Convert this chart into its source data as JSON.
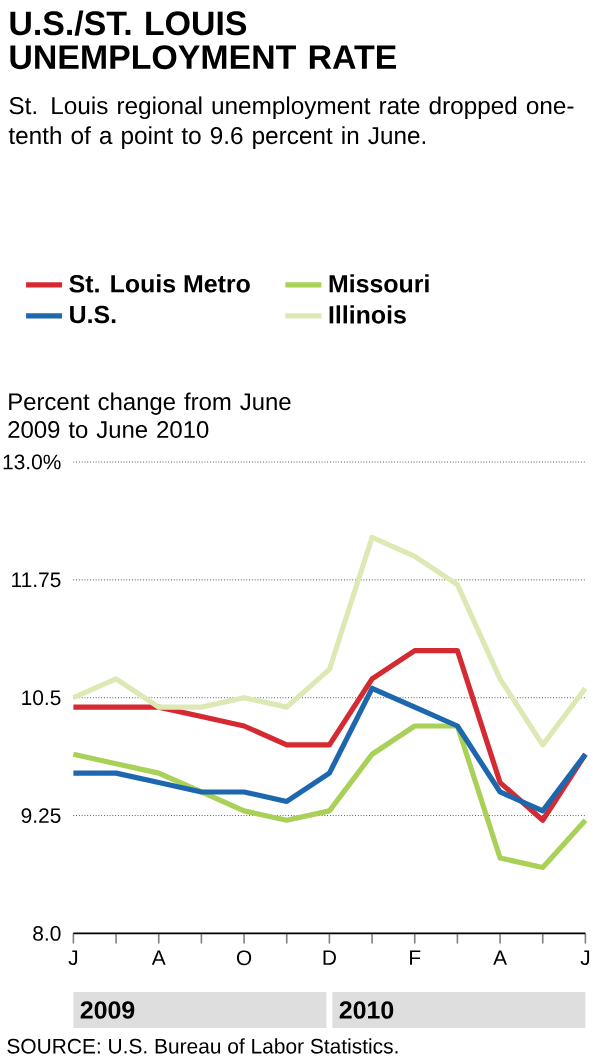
{
  "chart_data": {
    "type": "line",
    "title": "U.S./ST. LOUIS UNEMPLOYMENT RATE",
    "subtitle": "St. Louis regional unemployment rate dropped one-tenth of a point to 9.6 percent in June.",
    "ylabel": "Percent change from June 2009 to June 2010",
    "categories": [
      "J",
      null,
      "A",
      null,
      "O",
      null,
      "D",
      null,
      "F",
      null,
      "A",
      null,
      "J"
    ],
    "series": [
      {
        "name": "St. Louis Metro",
        "color": "#d42a32",
        "values": [
          10.4,
          10.4,
          10.4,
          10.3,
          10.2,
          10.0,
          10.0,
          10.7,
          11.0,
          11.0,
          9.6,
          9.2,
          9.9
        ]
      },
      {
        "name": "Missouri",
        "color": "#a9d057",
        "values": [
          9.9,
          9.8,
          9.7,
          9.5,
          9.3,
          9.2,
          9.3,
          9.9,
          10.2,
          10.2,
          8.8,
          8.7,
          9.2
        ]
      },
      {
        "name": "U.S.",
        "color": "#1c67ae",
        "values": [
          9.7,
          9.7,
          9.6,
          9.5,
          9.5,
          9.4,
          9.7,
          10.6,
          10.4,
          10.2,
          9.5,
          9.3,
          9.9
        ]
      },
      {
        "name": "Illinois",
        "color": "#dde9b4",
        "values": [
          10.5,
          10.7,
          10.4,
          10.4,
          10.5,
          10.4,
          10.8,
          12.2,
          12.0,
          11.7,
          10.7,
          10.0,
          10.6
        ]
      }
    ],
    "ylim": [
      8,
      13
    ],
    "yticks": [
      {
        "value": 8,
        "label": "8.0"
      },
      9.25,
      10.5,
      11.75,
      {
        "value": 13,
        "label": "13.0%"
      }
    ],
    "grid": "y",
    "legend": "top",
    "marker": "none",
    "line_style": "solid",
    "annotations": [
      "2009",
      "2010",
      "SOURCE: U.S. Bureau of Labor Statistics."
    ]
  }
}
